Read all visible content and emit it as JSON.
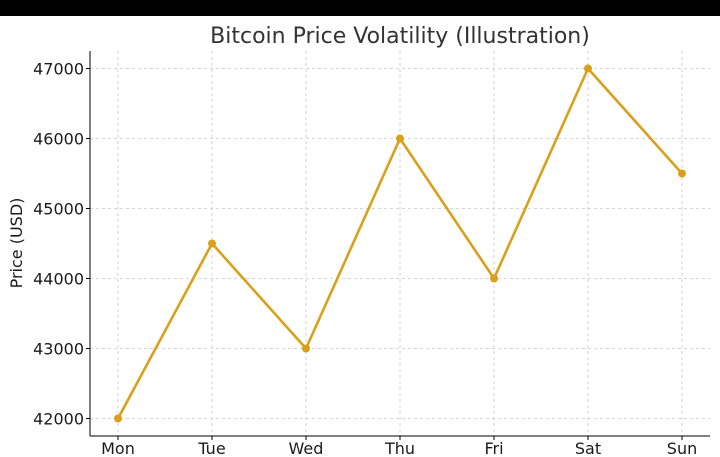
{
  "chart_data": {
    "type": "line",
    "title": "Bitcoin Price Volatility (Illustration)",
    "xlabel": "",
    "ylabel": "Price (USD)",
    "categories": [
      "Mon",
      "Tue",
      "Wed",
      "Thu",
      "Fri",
      "Sat",
      "Sun"
    ],
    "series": [
      {
        "values": [
          42000,
          44500,
          43000,
          46000,
          44000,
          47000,
          45500
        ],
        "color": "#DAA01C"
      }
    ],
    "ylim": [
      41750,
      47250
    ],
    "yticks": [
      42000,
      43000,
      44000,
      45000,
      46000,
      47000
    ],
    "grid": true,
    "legend": "none",
    "markers": true
  }
}
